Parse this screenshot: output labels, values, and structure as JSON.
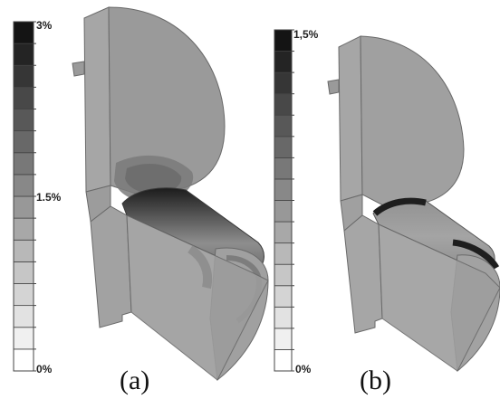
{
  "panels": [
    {
      "label": "(a)",
      "scale": {
        "ticks": [
          "3%",
          "1.5%",
          "0%"
        ],
        "band_colors": [
          "#ffffff",
          "#f0f0f0",
          "#e2e2e2",
          "#d4d4d4",
          "#c6c6c6",
          "#b8b8b8",
          "#a8a8a8",
          "#989898",
          "#888888",
          "#787878",
          "#686868",
          "#585858",
          "#484848",
          "#363636",
          "#242424",
          "#141414"
        ]
      }
    },
    {
      "label": "(b)",
      "scale": {
        "ticks": [
          "1,5%",
          "0%"
        ],
        "band_colors": [
          "#ffffff",
          "#f0f0f0",
          "#e2e2e2",
          "#d4d4d4",
          "#c6c6c6",
          "#b8b8b8",
          "#a8a8a8",
          "#989898",
          "#888888",
          "#787878",
          "#686868",
          "#585858",
          "#484848",
          "#363636",
          "#242424",
          "#141414"
        ]
      }
    }
  ]
}
